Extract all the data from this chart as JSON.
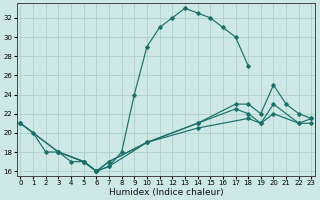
{
  "xlabel": "Humidex (Indice chaleur)",
  "background_color": "#cde8e5",
  "grid_color": "#aecfcc",
  "line_color": "#1a7068",
  "xlim": [
    -0.3,
    23.3
  ],
  "ylim": [
    15.5,
    33.5
  ],
  "yticks": [
    16,
    18,
    20,
    22,
    24,
    26,
    28,
    30,
    32
  ],
  "xticks": [
    0,
    1,
    2,
    3,
    4,
    5,
    6,
    7,
    8,
    9,
    10,
    11,
    12,
    13,
    14,
    15,
    16,
    17,
    18,
    19,
    20,
    21,
    22,
    23
  ],
  "curves": [
    {
      "x": [
        0,
        1,
        2,
        3,
        4,
        5,
        6,
        7,
        8,
        9,
        10,
        11,
        12,
        13,
        14,
        15,
        16,
        17,
        18
      ],
      "y": [
        21,
        20,
        18,
        18,
        17,
        17,
        16,
        16.5,
        18,
        24,
        29,
        31,
        32,
        33,
        32.5,
        32,
        31,
        30,
        27
      ]
    },
    {
      "x": [
        0,
        3,
        5,
        6,
        7,
        10,
        14,
        17,
        18,
        19,
        20,
        21,
        22,
        23
      ],
      "y": [
        21,
        18,
        17,
        16,
        17,
        19,
        21,
        23,
        23,
        22,
        25,
        23,
        22,
        21.5
      ]
    },
    {
      "x": [
        0,
        3,
        5,
        6,
        7,
        10,
        14,
        17,
        18,
        19,
        20,
        22,
        23
      ],
      "y": [
        21,
        18,
        17,
        16,
        17,
        19,
        21,
        22.5,
        22,
        21,
        23,
        21,
        21
      ]
    },
    {
      "x": [
        3,
        5,
        6,
        7,
        10,
        14,
        18,
        19,
        20,
        22,
        23
      ],
      "y": [
        18,
        17,
        16,
        16.5,
        19,
        20.5,
        21.5,
        21,
        22,
        21,
        21.5
      ]
    }
  ]
}
